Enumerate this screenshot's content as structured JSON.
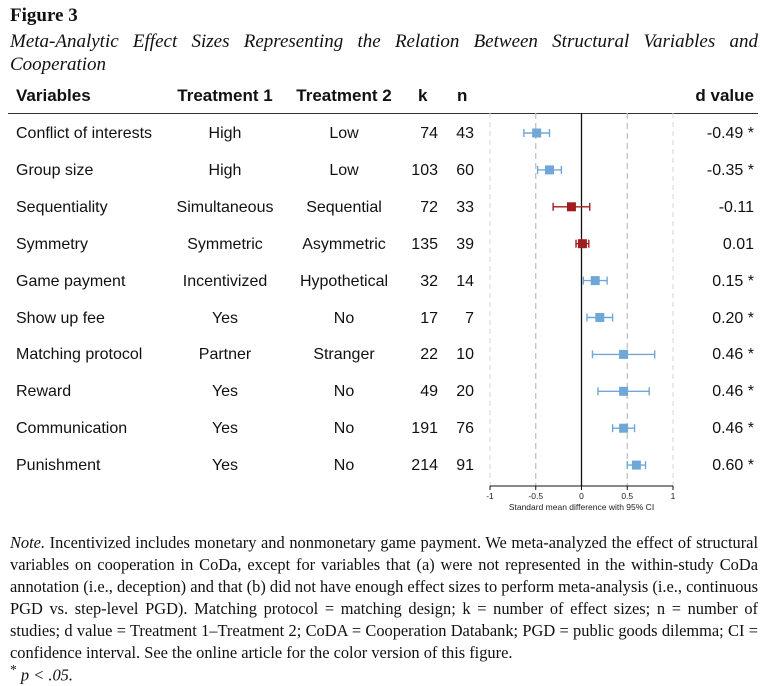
{
  "figure": {
    "label": "Figure 3",
    "title": "Meta-Analytic Effect Sizes Representing the Relation Between Structural Variables and",
    "title_cont": "Cooperation"
  },
  "table": {
    "headers": {
      "variables": "Variables",
      "treatment1": "Treatment 1",
      "treatment2": "Treatment 2",
      "k": "k",
      "n": "n",
      "d": "d value"
    },
    "rows": [
      {
        "variable": "Conflict of interests",
        "t1": "High",
        "t2": "Low",
        "k": "74",
        "n": "43",
        "d": "-0.49 *"
      },
      {
        "variable": "Group size",
        "t1": "High",
        "t2": "Low",
        "k": "103",
        "n": "60",
        "d": "-0.35 *"
      },
      {
        "variable": "Sequentiality",
        "t1": "Simultaneous",
        "t2": "Sequential",
        "k": "72",
        "n": "33",
        "d": "-0.11"
      },
      {
        "variable": "Symmetry",
        "t1": "Symmetric",
        "t2": "Asymmetric",
        "k": "135",
        "n": "39",
        "d": "0.01"
      },
      {
        "variable": "Game payment",
        "t1": "Incentivized",
        "t2": "Hypothetical",
        "k": "32",
        "n": "14",
        "d": "0.15 *"
      },
      {
        "variable": "Show up fee",
        "t1": "Yes",
        "t2": "No",
        "k": "17",
        "n": "7",
        "d": "0.20 *"
      },
      {
        "variable": "Matching protocol",
        "t1": "Partner",
        "t2": "Stranger",
        "k": "22",
        "n": "10",
        "d": "0.46 *"
      },
      {
        "variable": "Reward",
        "t1": "Yes",
        "t2": "No",
        "k": "49",
        "n": "20",
        "d": "0.46 *"
      },
      {
        "variable": "Communication",
        "t1": "Yes",
        "t2": "No",
        "k": "191",
        "n": "76",
        "d": "0.46 *"
      },
      {
        "variable": "Punishment",
        "t1": "Yes",
        "t2": "No",
        "k": "214",
        "n": "91",
        "d": "0.60 *"
      }
    ]
  },
  "chart_data": {
    "type": "scatter",
    "subtype": "forest-plot",
    "xlabel": "Standard mean difference with 95% CI",
    "xlim": [
      -1,
      1
    ],
    "xticks": [
      -1,
      -0.5,
      0,
      0.5,
      1
    ],
    "xtick_labels": [
      "-1",
      "-0.5",
      "0",
      "0.5",
      "1"
    ],
    "reference_lines": [
      -0.5,
      0.5
    ],
    "zero_line": 0,
    "colors": {
      "significant": "#6fa8d6",
      "nonsignificant": "#a11d1d",
      "axis": "#111111",
      "reference": "#bdbdbd"
    },
    "points": [
      {
        "label": "Conflict of interests",
        "estimate": -0.49,
        "ci_low": -0.63,
        "ci_high": -0.35,
        "significant": true
      },
      {
        "label": "Group size",
        "estimate": -0.35,
        "ci_low": -0.48,
        "ci_high": -0.22,
        "significant": true
      },
      {
        "label": "Sequentiality",
        "estimate": -0.11,
        "ci_low": -0.31,
        "ci_high": 0.09,
        "significant": false
      },
      {
        "label": "Symmetry",
        "estimate": 0.01,
        "ci_low": -0.06,
        "ci_high": 0.08,
        "significant": false
      },
      {
        "label": "Game payment",
        "estimate": 0.15,
        "ci_low": 0.02,
        "ci_high": 0.28,
        "significant": true
      },
      {
        "label": "Show up fee",
        "estimate": 0.2,
        "ci_low": 0.06,
        "ci_high": 0.34,
        "significant": true
      },
      {
        "label": "Matching protocol",
        "estimate": 0.46,
        "ci_low": 0.12,
        "ci_high": 0.8,
        "significant": true
      },
      {
        "label": "Reward",
        "estimate": 0.46,
        "ci_low": 0.18,
        "ci_high": 0.74,
        "significant": true
      },
      {
        "label": "Communication",
        "estimate": 0.46,
        "ci_low": 0.34,
        "ci_high": 0.58,
        "significant": true
      },
      {
        "label": "Punishment",
        "estimate": 0.6,
        "ci_low": 0.5,
        "ci_high": 0.7,
        "significant": true
      }
    ]
  },
  "note": {
    "label": "Note.",
    "text": " Incentivized includes monetary and nonmonetary game payment. We meta-analyzed the effect of structural variables on cooperation in CoDa, except for variables that (a) were not represented in the within-study CoDa annotation (i.e., deception) and that (b) did not have enough effect sizes to perform meta-analysis (i.e., continuous PGD vs. step-level PGD). Matching protocol = matching design; k = number of effect sizes; n = number of studies; d value = Treatment 1–Treatment 2; CoDA = Cooperation Databank; PGD = public goods dilemma; CI = confidence interval. See the online article for the color version of this figure.",
    "sig_star": "*",
    "sig_text": " p < .05."
  }
}
